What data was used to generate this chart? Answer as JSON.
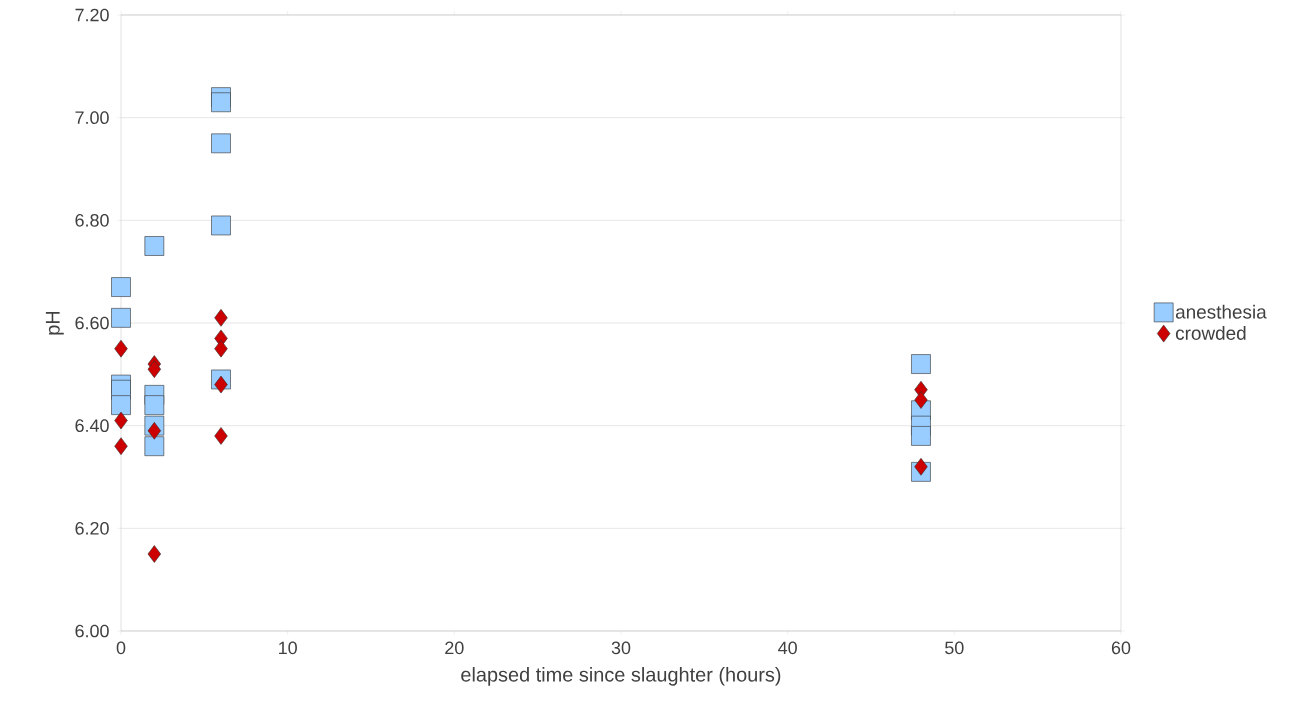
{
  "chart_data": {
    "type": "scatter",
    "xlabel": "elapsed time since slaughter (hours)",
    "ylabel": "pH",
    "xlim": [
      0,
      60
    ],
    "xticks": [
      0,
      10,
      20,
      30,
      40,
      50,
      60
    ],
    "ylim": [
      6.0,
      7.2
    ],
    "yticks": [
      {
        "value": 6.0,
        "label": "6.00"
      },
      {
        "value": 6.2,
        "label": "6.20"
      },
      {
        "value": 6.4,
        "label": "6.40"
      },
      {
        "value": 6.6,
        "label": "6.60"
      },
      {
        "value": 6.8,
        "label": "6.80"
      },
      {
        "value": 7.0,
        "label": "7.00"
      },
      {
        "value": 7.2,
        "label": "7.20"
      }
    ],
    "grid": "y",
    "legend": "right",
    "series": [
      {
        "name": "anesthesia",
        "color": "#99ccff",
        "marker": "square",
        "x": [
          0,
          0,
          0,
          0,
          0,
          2,
          2,
          2,
          2,
          2,
          6,
          6,
          6,
          6,
          6,
          48,
          48,
          48,
          48,
          48
        ],
        "values": [
          6.67,
          6.61,
          6.48,
          6.47,
          6.44,
          6.75,
          6.46,
          6.44,
          6.4,
          6.36,
          7.04,
          7.03,
          6.95,
          6.79,
          6.49,
          6.52,
          6.43,
          6.4,
          6.38,
          6.31
        ]
      },
      {
        "name": "crowded",
        "color": "#cc0000",
        "marker": "diamond",
        "x": [
          0,
          0,
          0,
          2,
          2,
          2,
          2,
          6,
          6,
          6,
          6,
          6,
          48,
          48,
          48
        ],
        "values": [
          6.55,
          6.41,
          6.36,
          6.52,
          6.51,
          6.39,
          6.15,
          6.61,
          6.57,
          6.55,
          6.48,
          6.38,
          6.47,
          6.45,
          6.32
        ]
      }
    ]
  }
}
